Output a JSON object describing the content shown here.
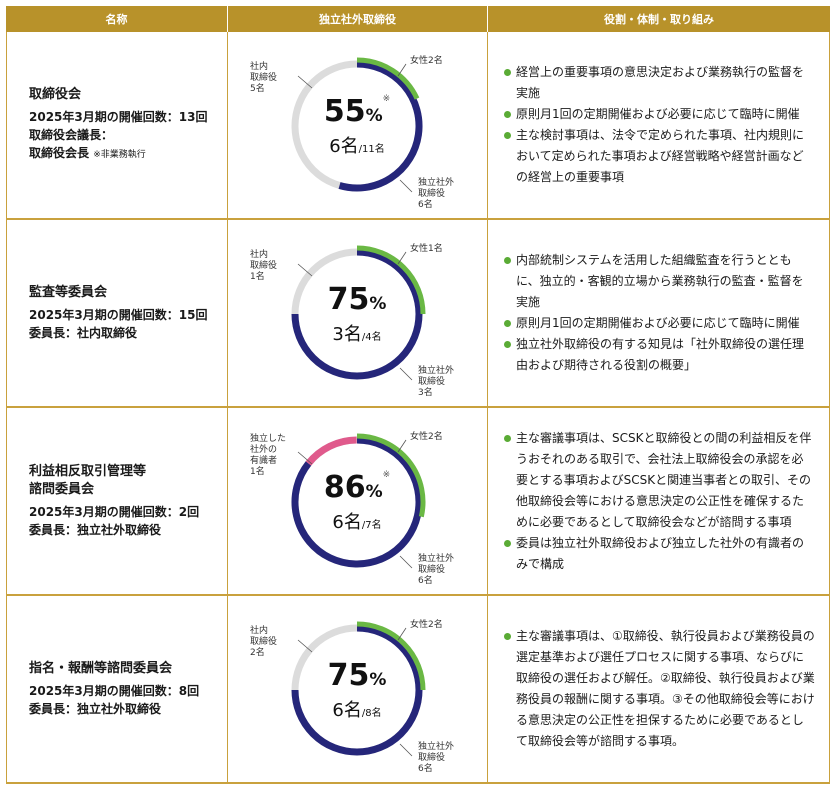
{
  "header": {
    "col1": "名称",
    "col2": "独立社外取締役",
    "col3": "役割・体制・取り組み"
  },
  "colors": {
    "gold": "#b8922a",
    "navy": "#25267a",
    "green": "#6ab844",
    "pink": "#e05a8c",
    "gray": "#dcdcdc",
    "bullet": "#5aab35"
  },
  "rows": [
    {
      "name": "取締役会",
      "line1": "2025年3月期の開催回数：13回",
      "line2": "取締役会議長：",
      "line3": "取締役会長",
      "note": "※非業務執行",
      "pct": "55",
      "pct_sign": "%",
      "star": "※",
      "count": "6名",
      "total": "/11名",
      "label_left": [
        "社内",
        "取締役",
        "5名"
      ],
      "label_top": "女性2名",
      "label_bottom": [
        "独立社外",
        "取締役",
        "6名"
      ],
      "chart": {
        "outside_fraction": 0.5455,
        "female_fraction": 0.1818,
        "other_fraction": 0
      },
      "bullets": [
        "経営上の重要事項の意思決定および業務執行の監督を実施",
        "原則月1回の定期開催および必要に応じて臨時に開催",
        "主な検討事項は、法令で定められた事項、社内規則において定められた事項および経営戦略や経営計画などの経営上の重要事項"
      ]
    },
    {
      "name": "監査等委員会",
      "line1": "2025年3月期の開催回数：15回",
      "line2": "委員長：社内取締役",
      "line3": "",
      "note": "",
      "pct": "75",
      "pct_sign": "%",
      "star": "",
      "count": "3名",
      "total": "/4名",
      "label_left": [
        "社内",
        "取締役",
        "1名"
      ],
      "label_top": "女性1名",
      "label_bottom": [
        "独立社外",
        "取締役",
        "3名"
      ],
      "chart": {
        "outside_fraction": 0.75,
        "female_fraction": 0.25,
        "other_fraction": 0
      },
      "bullets": [
        "内部統制システムを活用した組織監査を行うとともに、独立的・客観的立場から業務執行の監査・監督を実施",
        "原則月1回の定期開催および必要に応じて臨時に開催",
        "独立社外取締役の有する知見は「社外取締役の選任理由および期待される役割の概要」"
      ]
    },
    {
      "name": "利益相反取引管理等",
      "name2": "諮問委員会",
      "line1": "2025年3月期の開催回数：2回",
      "line2": "委員長：独立社外取締役",
      "line3": "",
      "note": "",
      "pct": "86",
      "pct_sign": "%",
      "star": "※",
      "count": "6名",
      "total": "/7名",
      "label_left": [
        "独立した",
        "社外の",
        "有識者",
        "1名"
      ],
      "label_top": "女性2名",
      "label_bottom": [
        "独立社外",
        "取締役",
        "6名"
      ],
      "chart": {
        "outside_fraction": 0.857,
        "female_fraction": 0.2857,
        "other_fraction": 0.143
      },
      "bullets": [
        "主な審議事項は、SCSKと取締役との間の利益相反を伴うおそれのある取引で、会社法上取締役会の承認を必要とする事項およびSCSKと関連当事者との取引、その他取締役会等における意思決定の公正性を確保するために必要であるとして取締役会などが諮問する事項",
        "委員は独立社外取締役および独立した社外の有識者のみで構成"
      ]
    },
    {
      "name": "指名・報酬等諮問委員会",
      "line1": "2025年3月期の開催回数：8回",
      "line2": "委員長：独立社外取締役",
      "line3": "",
      "note": "",
      "pct": "75",
      "pct_sign": "%",
      "star": "",
      "count": "6名",
      "total": "/8名",
      "label_left": [
        "社内",
        "取締役",
        "2名"
      ],
      "label_top": "女性2名",
      "label_bottom": [
        "独立社外",
        "取締役",
        "6名"
      ],
      "chart": {
        "outside_fraction": 0.75,
        "female_fraction": 0.25,
        "other_fraction": 0
      },
      "bullets": [
        "主な審議事項は、①取締役、執行役員および業務役員の選定基準および選任プロセスに関する事項、ならびに取締役の選任および解任。②取締役、執行役員および業務役員の報酬に関する事項。③その他取締役会等における意思決定の公正性を担保するために必要であるとして取締役会等が諮問する事項。"
      ]
    }
  ]
}
